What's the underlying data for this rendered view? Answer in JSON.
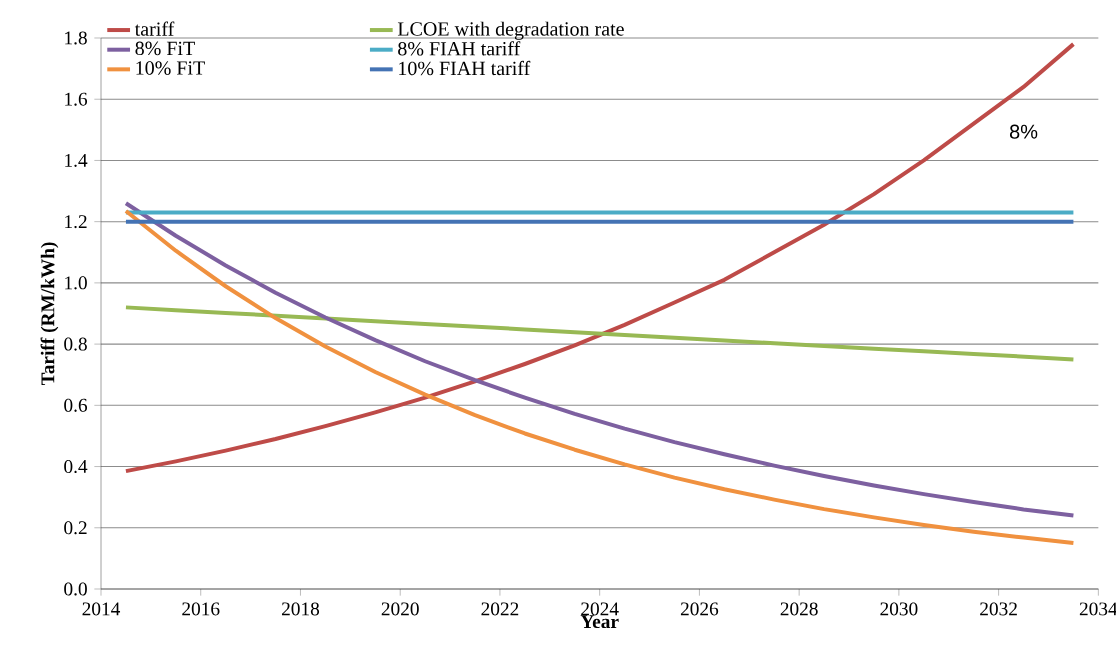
{
  "chart_data": {
    "type": "line",
    "xlabel": "Year",
    "ylabel": "Tariff (RM/kWh)",
    "x": [
      2014.5,
      2015.5,
      2016.5,
      2017.5,
      2018.5,
      2019.5,
      2020.5,
      2021.5,
      2022.5,
      2023.5,
      2024.5,
      2025.5,
      2026.5,
      2027.5,
      2028.5,
      2029.5,
      2030.5,
      2031.5,
      2032.5,
      2033.5
    ],
    "series": [
      {
        "name": "tariff",
        "color": "#be4b48",
        "values": [
          0.385,
          0.417,
          0.452,
          0.49,
          0.532,
          0.577,
          0.625,
          0.678,
          0.735,
          0.796,
          0.863,
          0.936,
          1.01,
          1.1,
          1.19,
          1.29,
          1.4,
          1.52,
          1.64,
          1.78
        ]
      },
      {
        "name": "LCOE with degradation rate",
        "color": "#98b954",
        "values": [
          0.92,
          0.911,
          0.902,
          0.893,
          0.884,
          0.875,
          0.866,
          0.857,
          0.848,
          0.839,
          0.83,
          0.821,
          0.812,
          0.803,
          0.794,
          0.785,
          0.777,
          0.768,
          0.759,
          0.75
        ]
      },
      {
        "name": "8% FiT",
        "color": "#7d60a0",
        "values": [
          1.26,
          1.154,
          1.057,
          0.968,
          0.887,
          0.813,
          0.744,
          0.682,
          0.625,
          0.572,
          0.524,
          0.48,
          0.44,
          0.403,
          0.369,
          0.338,
          0.31,
          0.284,
          0.26,
          0.24
        ]
      },
      {
        "name": "8% FIAH tariff",
        "color": "#4bacc6",
        "values": [
          1.23,
          1.23,
          1.23,
          1.23,
          1.23,
          1.23,
          1.23,
          1.23,
          1.23,
          1.23,
          1.23,
          1.23,
          1.23,
          1.23,
          1.23,
          1.23,
          1.23,
          1.23,
          1.23,
          1.23
        ]
      },
      {
        "name": "10% FiT",
        "color": "#f0913f",
        "values": [
          1.235,
          1.105,
          0.989,
          0.885,
          0.792,
          0.709,
          0.635,
          0.568,
          0.508,
          0.455,
          0.407,
          0.364,
          0.326,
          0.292,
          0.261,
          0.234,
          0.209,
          0.187,
          0.168,
          0.15
        ]
      },
      {
        "name": "10% FIAH tariff",
        "color": "#4473b4",
        "values": [
          1.2,
          1.2,
          1.2,
          1.2,
          1.2,
          1.2,
          1.2,
          1.2,
          1.2,
          1.2,
          1.2,
          1.2,
          1.2,
          1.2,
          1.2,
          1.2,
          1.2,
          1.2,
          1.2,
          1.2
        ]
      }
    ],
    "annotations": [
      "8%"
    ],
    "xlim": [
      2014,
      2034
    ],
    "xticks": [
      2014,
      2016,
      2018,
      2020,
      2022,
      2024,
      2026,
      2028,
      2030,
      2032,
      2034
    ],
    "ylim": [
      0,
      1.8
    ],
    "yticks": [
      {
        "value": 0,
        "label": "0.0"
      },
      {
        "value": 0.2,
        "label": "0.2"
      },
      {
        "value": 0.4,
        "label": "0.4"
      },
      {
        "value": 0.6,
        "label": "0.6"
      },
      {
        "value": 0.8,
        "label": "0.8"
      },
      {
        "value": 1.0,
        "label": "1.0"
      },
      {
        "value": 1.2,
        "label": "1.2"
      },
      {
        "value": 1.4,
        "label": "1.4"
      },
      {
        "value": 1.6,
        "label": "1.6"
      },
      {
        "value": 1.8,
        "label": "1.8"
      }
    ],
    "grid": "y",
    "legend": "top",
    "marker": "none",
    "line_style": "solid"
  }
}
